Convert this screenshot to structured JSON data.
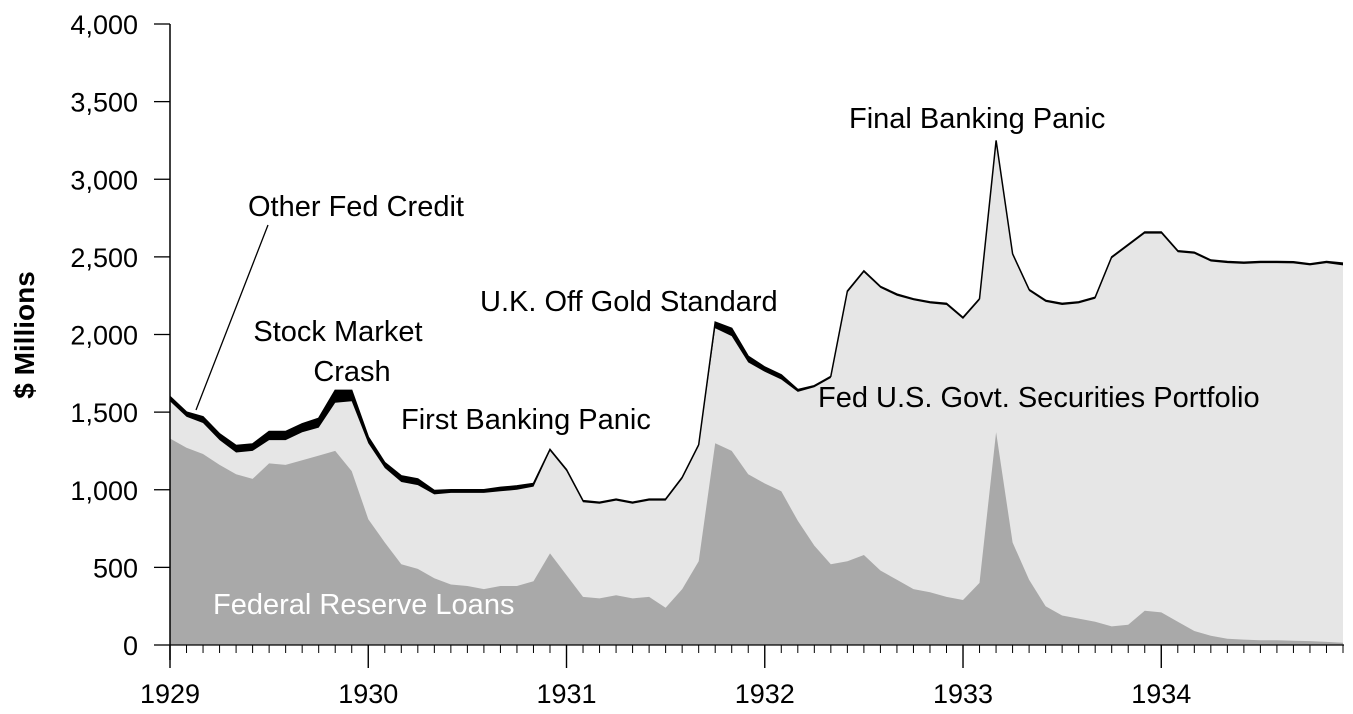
{
  "chart_data": {
    "type": "area",
    "stacked": true,
    "title": "",
    "xlabel": "",
    "ylabel": "$ Millions",
    "ylim": [
      0,
      4000
    ],
    "yticks": [
      0,
      500,
      1000,
      1500,
      2000,
      2500,
      3000,
      3500,
      4000
    ],
    "ytick_labels": [
      "0",
      "500",
      "1,000",
      "1,500",
      "2,000",
      "2,500",
      "3,000",
      "3,500",
      "4,000"
    ],
    "xticks": [
      "1929",
      "1930",
      "1931",
      "1932",
      "1933",
      "1934"
    ],
    "x_start_year": 1929,
    "x_months": 72,
    "grid": false,
    "legend": "none (direct labels)",
    "colors": {
      "Federal Reserve Loans": "#a9a9a9",
      "Fed U.S. Govt. Securities Portfolio": "#e6e6e6",
      "Other Fed Credit": "#000000"
    },
    "series": [
      {
        "name": "Federal Reserve Loans",
        "values": [
          1330,
          1270,
          1230,
          1160,
          1100,
          1070,
          1170,
          1160,
          1190,
          1220,
          1250,
          1120,
          810,
          660,
          520,
          490,
          430,
          390,
          380,
          360,
          380,
          380,
          410,
          590,
          450,
          310,
          300,
          320,
          300,
          310,
          240,
          360,
          540,
          1300,
          1250,
          1100,
          1040,
          990,
          800,
          640,
          520,
          540,
          580,
          480,
          420,
          360,
          340,
          310,
          290,
          400,
          1370,
          660,
          420,
          250,
          190,
          170,
          150,
          120,
          130,
          220,
          210,
          150,
          90,
          60,
          40,
          35,
          30,
          30,
          28,
          25,
          20,
          15
        ]
      },
      {
        "name": "Fed U.S. Govt. Securities Portfolio",
        "values": [
          240,
          200,
          200,
          160,
          140,
          180,
          150,
          160,
          180,
          180,
          310,
          450,
          490,
          480,
          530,
          540,
          540,
          590,
          600,
          620,
          610,
          620,
          610,
          660,
          670,
          610,
          610,
          610,
          610,
          620,
          690,
          710,
          740,
          740,
          740,
          720,
          720,
          720,
          830,
          1020,
          1200,
          1730,
          1820,
          1820,
          1830,
          1860,
          1860,
          1880,
          1810,
          1820,
          1870,
          1850,
          1860,
          1960,
          2000,
          2030,
          2080,
          2370,
          2440,
          2430,
          2440,
          2380,
          2430,
          2410,
          2420,
          2420,
          2430,
          2430,
          2430,
          2420,
          2440,
          2430
        ]
      },
      {
        "name": "Other Fed Credit",
        "values": [
          30,
          30,
          40,
          40,
          45,
          45,
          55,
          55,
          55,
          60,
          80,
          70,
          40,
          35,
          40,
          40,
          25,
          20,
          20,
          20,
          25,
          25,
          20,
          10,
          10,
          10,
          10,
          10,
          10,
          10,
          10,
          10,
          10,
          40,
          50,
          40,
          30,
          30,
          15,
          10,
          10,
          10,
          10,
          10,
          10,
          10,
          10,
          10,
          10,
          10,
          10,
          10,
          10,
          10,
          10,
          10,
          10,
          10,
          10,
          10,
          10,
          10,
          10,
          10,
          10,
          10,
          10,
          10,
          10,
          10,
          10,
          15
        ]
      }
    ],
    "annotations": [
      {
        "text": "Other Fed Credit",
        "month": 2,
        "value": 2880,
        "has_leader_line": true
      },
      {
        "text": "Stock Market Crash",
        "month": 10,
        "value": 1900
      },
      {
        "text": "First Banking Panic",
        "month": 24,
        "value": 1450
      },
      {
        "text": "U.K. Off Gold Standard",
        "month": 33,
        "value": 2200
      },
      {
        "text": "Final Banking Panic",
        "month": 50,
        "value": 3350
      },
      {
        "text": "Fed U.S. Govt. Securities Portfolio",
        "month": 66,
        "value": 1600
      },
      {
        "text": "Federal Reserve Loans",
        "month": 10,
        "value": 250
      }
    ]
  },
  "labels": {
    "ylabel": "$ Millions",
    "ann_other": "Other Fed Credit",
    "ann_crash_1": "Stock Market",
    "ann_crash_2": "Crash",
    "ann_first_panic": "First Banking Panic",
    "ann_uk": "U.K. Off Gold Standard",
    "ann_final_panic": "Final Banking Panic",
    "ann_securities": "Fed U.S. Govt. Securities Portfolio",
    "ann_loans": "Federal Reserve Loans"
  }
}
